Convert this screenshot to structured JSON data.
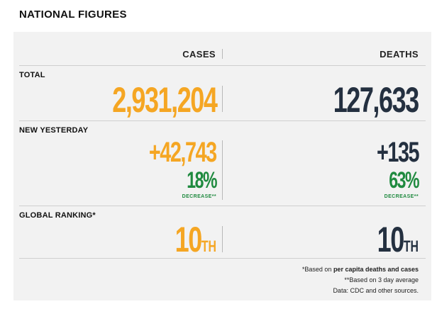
{
  "title": "NATIONAL FIGURES",
  "columns": {
    "cases": "CASES",
    "deaths": "DEATHS"
  },
  "rows": {
    "total": {
      "label": "TOTAL",
      "cases": "2,931,204",
      "deaths": "127,633"
    },
    "new_yesterday": {
      "label": "NEW YESTERDAY",
      "cases": "+42,743",
      "deaths": "+135",
      "cases_change_pct": "18%",
      "cases_change_label": "DECREASE**",
      "deaths_change_pct": "63%",
      "deaths_change_label": "DECREASE**"
    },
    "global_ranking": {
      "label": "GLOBAL RANKING*",
      "cases_rank": "10",
      "cases_suffix": "TH",
      "deaths_rank": "10",
      "deaths_suffix": "TH"
    }
  },
  "footnotes": {
    "per_capita_prefix": "*Based on ",
    "per_capita_bold": "per capita deaths and cases",
    "three_day": "**Based on 3 day average",
    "source": "Data: CDC and other sources."
  },
  "colors": {
    "cases": "#f5a623",
    "deaths": "#243040",
    "decrease": "#1f8a3f"
  }
}
